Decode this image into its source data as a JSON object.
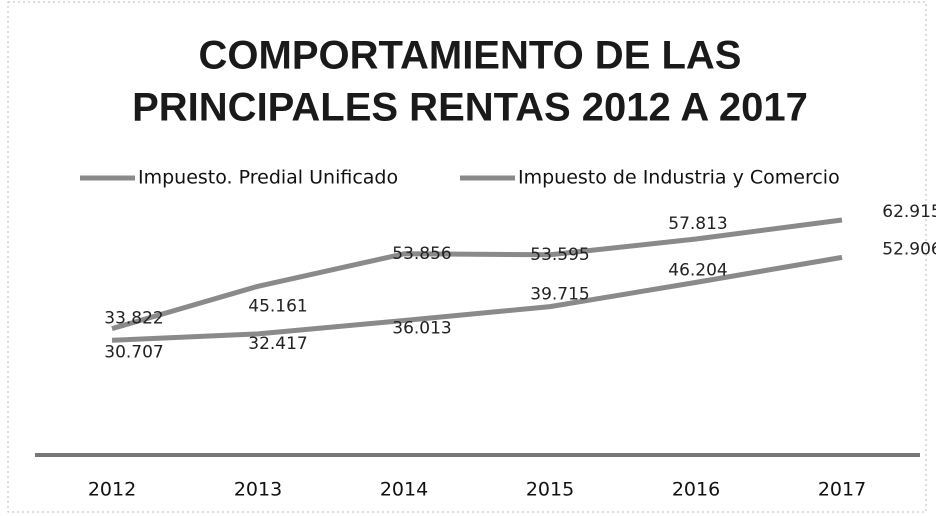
{
  "chart_data": {
    "type": "line",
    "title": [
      "COMPORTAMIENTO DE LAS",
      "PRINCIPALES RENTAS 2012 A 2017"
    ],
    "categories": [
      "2012",
      "2013",
      "2014",
      "2015",
      "2016",
      "2017"
    ],
    "series": [
      {
        "name": "Impuesto. Predial Unificado",
        "color": "#8a8a8a",
        "values": [
          33.822,
          45.161,
          53.856,
          53.595,
          57.813,
          62.915
        ]
      },
      {
        "name": "Impuesto de Industria y Comercio",
        "color": "#8a8a8a",
        "values": [
          30.707,
          32.417,
          36.013,
          39.715,
          46.204,
          52.906
        ]
      }
    ],
    "ylim": [
      0,
      70
    ],
    "legend": "top"
  }
}
